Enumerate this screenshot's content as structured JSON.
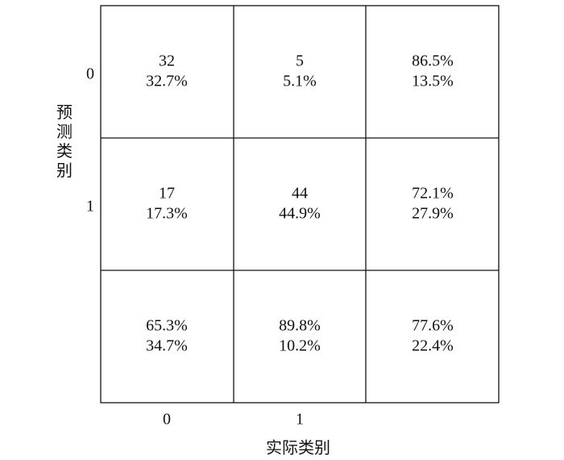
{
  "y_label": "预测类别",
  "x_label": "实际类别",
  "row_labels": [
    "0",
    "1"
  ],
  "col_labels": [
    "0",
    "1"
  ],
  "cells": [
    [
      [
        "32",
        "32.7%"
      ],
      [
        "5",
        "5.1%"
      ],
      [
        "86.5%",
        "13.5%"
      ]
    ],
    [
      [
        "17",
        "17.3%"
      ],
      [
        "44",
        "44.9%"
      ],
      [
        "72.1%",
        "27.9%"
      ]
    ],
    [
      [
        "65.3%",
        "34.7%"
      ],
      [
        "89.8%",
        "10.2%"
      ],
      [
        "77.6%",
        "22.4%"
      ]
    ]
  ]
}
